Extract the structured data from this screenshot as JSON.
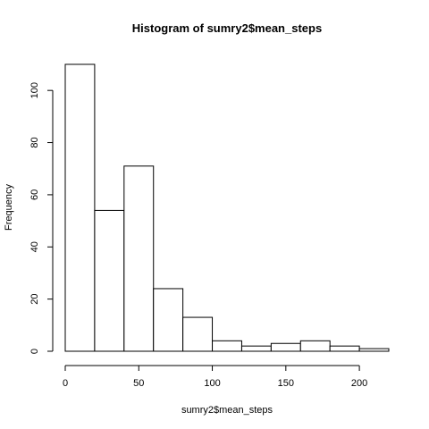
{
  "chart_data": {
    "type": "bar",
    "title": "Histogram of sumry2$mean_steps",
    "xlabel": "sumry2$mean_steps",
    "ylabel": "Frequency",
    "bins": [
      {
        "x0": 0,
        "x1": 20,
        "count": 110
      },
      {
        "x0": 20,
        "x1": 40,
        "count": 54
      },
      {
        "x0": 40,
        "x1": 60,
        "count": 71
      },
      {
        "x0": 60,
        "x1": 80,
        "count": 24
      },
      {
        "x0": 80,
        "x1": 100,
        "count": 13
      },
      {
        "x0": 100,
        "x1": 120,
        "count": 4
      },
      {
        "x0": 120,
        "x1": 140,
        "count": 2
      },
      {
        "x0": 140,
        "x1": 160,
        "count": 3
      },
      {
        "x0": 160,
        "x1": 180,
        "count": 4
      },
      {
        "x0": 180,
        "x1": 200,
        "count": 2
      },
      {
        "x0": 200,
        "x1": 220,
        "count": 1
      }
    ],
    "xticks": [
      0,
      50,
      100,
      150,
      200
    ],
    "yticks": [
      0,
      20,
      40,
      60,
      80,
      100
    ],
    "xlim": [
      0,
      220
    ],
    "ylim": [
      0,
      110
    ],
    "grid": false,
    "legend": "none",
    "colors": {
      "fill": "#ffffff",
      "stroke": "#000000"
    }
  }
}
